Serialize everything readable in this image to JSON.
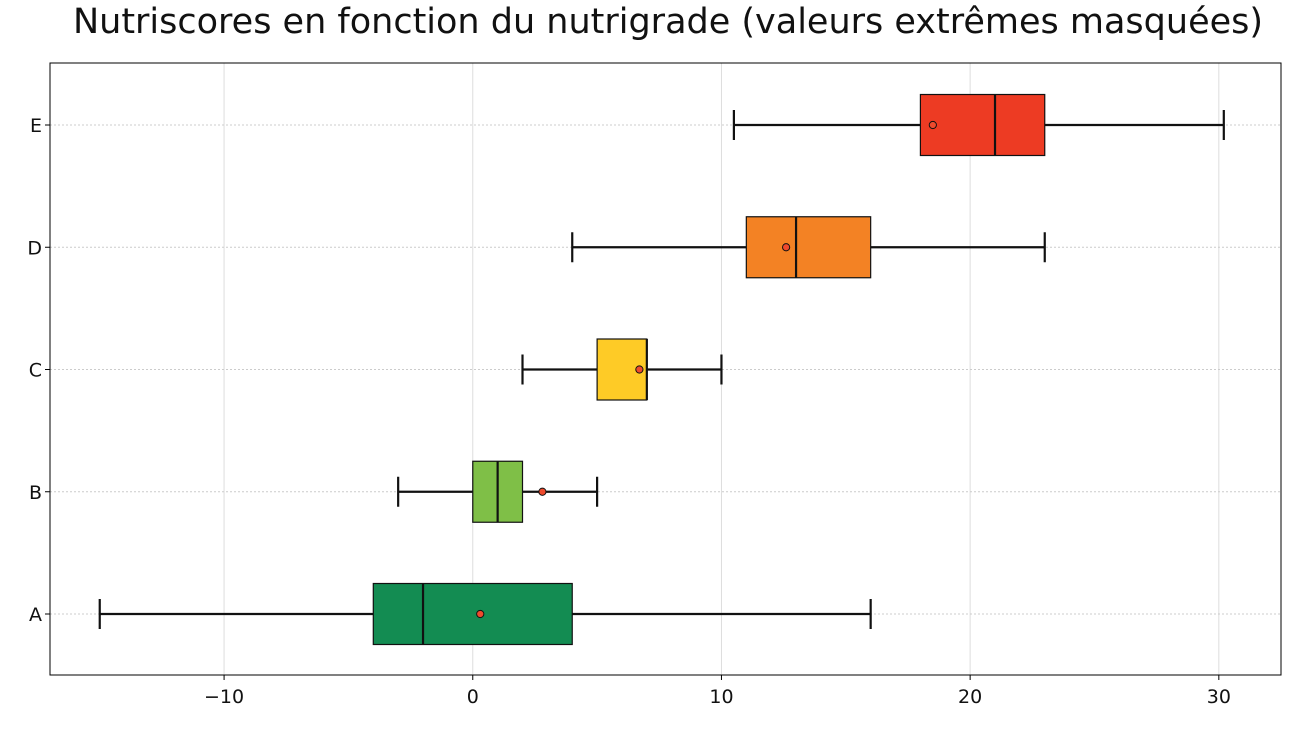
{
  "chart_data": {
    "type": "box",
    "orientation": "horizontal",
    "title": "Nutriscores en fonction du nutrigrade (valeurs extrêmes masquées)",
    "xlabel": "",
    "ylabel": "",
    "xlim": [
      -17,
      32.5
    ],
    "xticks": [
      -10,
      0,
      10,
      20,
      30
    ],
    "xtick_labels": [
      "−10",
      "0",
      "10",
      "20",
      "30"
    ],
    "grid": true,
    "categories": [
      "A",
      "B",
      "C",
      "D",
      "E"
    ],
    "boxes": [
      {
        "label": "A",
        "whisker_low": -15,
        "q1": -4,
        "median": -2,
        "q3": 4,
        "whisker_high": 16,
        "mean": 0.3,
        "color": "#138c52"
      },
      {
        "label": "B",
        "whisker_low": -3,
        "q1": 0,
        "median": 1,
        "q3": 2,
        "whisker_high": 5,
        "mean": 2.8,
        "color": "#7fbf47"
      },
      {
        "label": "C",
        "whisker_low": 2,
        "q1": 5,
        "median": 7,
        "q3": 7,
        "whisker_high": 10,
        "mean": 6.7,
        "color": "#fecb26"
      },
      {
        "label": "D",
        "whisker_low": 4,
        "q1": 11,
        "median": 13,
        "q3": 16,
        "whisker_high": 23,
        "mean": 12.6,
        "color": "#f38224"
      },
      {
        "label": "E",
        "whisker_low": 10.5,
        "q1": 18,
        "median": 21,
        "q3": 23,
        "whisker_high": 30.2,
        "mean": 18.5,
        "color": "#ed3b23"
      }
    ],
    "mean_marker_color": "#ee4a2d"
  }
}
